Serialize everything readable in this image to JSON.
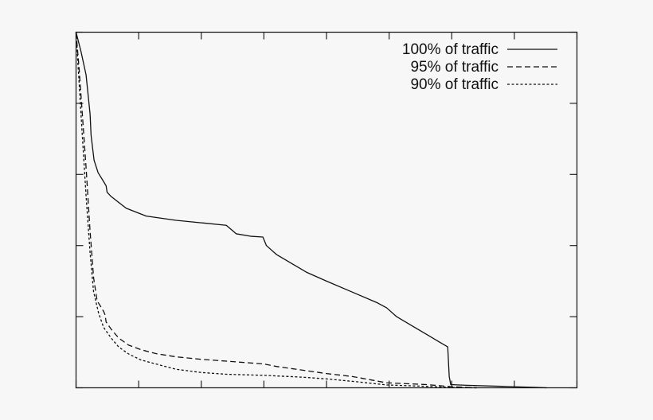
{
  "chart_data": {
    "type": "line",
    "title": "",
    "xlabel": "",
    "ylabel": "",
    "xlim": [
      0,
      100
    ],
    "ylim": [
      0,
      100
    ],
    "x_ticks": [
      0,
      12.5,
      25,
      37.5,
      50,
      62.5,
      75,
      87.5,
      100
    ],
    "y_ticks": [
      0,
      20,
      40,
      60,
      80,
      100
    ],
    "tick_labels_shown": false,
    "grid": false,
    "legend_position": "top-right",
    "series": [
      {
        "name": "100% of traffic",
        "line_style": "solid",
        "color": "#111111",
        "points": [
          [
            0,
            100
          ],
          [
            1,
            94.5
          ],
          [
            2,
            88
          ],
          [
            2.8,
            77
          ],
          [
            3,
            71
          ],
          [
            3.6,
            64
          ],
          [
            4.4,
            60.5
          ],
          [
            5.5,
            58
          ],
          [
            6,
            56.8
          ],
          [
            6.2,
            55
          ],
          [
            7,
            53.8
          ],
          [
            10,
            50.5
          ],
          [
            14,
            48.3
          ],
          [
            20,
            47.1
          ],
          [
            25,
            46.4
          ],
          [
            30,
            45.7
          ],
          [
            31,
            44.5
          ],
          [
            32,
            43.3
          ],
          [
            35,
            42.6
          ],
          [
            37.3,
            42.4
          ],
          [
            38,
            40
          ],
          [
            40,
            37.5
          ],
          [
            43,
            35
          ],
          [
            46,
            32.5
          ],
          [
            50,
            30
          ],
          [
            55,
            27
          ],
          [
            60,
            24
          ],
          [
            62,
            22.5
          ],
          [
            64,
            20
          ],
          [
            67,
            17.5
          ],
          [
            70,
            15
          ],
          [
            73,
            12.5
          ],
          [
            74.2,
            11.5
          ],
          [
            74.5,
            3.2
          ],
          [
            74.8,
            0.9
          ],
          [
            78,
            0.7
          ],
          [
            85,
            0.4
          ],
          [
            92,
            0.1
          ],
          [
            94,
            0
          ]
        ]
      },
      {
        "name": "95% of traffic",
        "line_style": "dashed",
        "color": "#111111",
        "points": [
          [
            0,
            100
          ],
          [
            0.6,
            90
          ],
          [
            1.2,
            78
          ],
          [
            2,
            62
          ],
          [
            2.8,
            44
          ],
          [
            3.5,
            31
          ],
          [
            4.2,
            24.5
          ],
          [
            5.5,
            21.5
          ],
          [
            5.8,
            20.5
          ],
          [
            6,
            18.5
          ],
          [
            7,
            16.5
          ],
          [
            8.5,
            14
          ],
          [
            10.5,
            12
          ],
          [
            13,
            10.7
          ],
          [
            16,
            9.6
          ],
          [
            20,
            8.7
          ],
          [
            25,
            8
          ],
          [
            30,
            7.5
          ],
          [
            37.5,
            6.7
          ],
          [
            40,
            6
          ],
          [
            45,
            5
          ],
          [
            50,
            4
          ],
          [
            55,
            3.2
          ],
          [
            57,
            2.7
          ],
          [
            62,
            1.4
          ],
          [
            70,
            0.9
          ],
          [
            75,
            0.3
          ],
          [
            80,
            0
          ]
        ]
      },
      {
        "name": "90% of traffic",
        "line_style": "dotted",
        "color": "#111111",
        "points": [
          [
            0,
            100
          ],
          [
            0.6,
            86
          ],
          [
            1.2,
            72
          ],
          [
            2,
            54
          ],
          [
            2.8,
            38
          ],
          [
            3.5,
            27
          ],
          [
            4.5,
            21
          ],
          [
            5.5,
            17
          ],
          [
            7,
            14
          ],
          [
            8.5,
            11.5
          ],
          [
            10.5,
            9.5
          ],
          [
            13,
            7.8
          ],
          [
            17,
            6.3
          ],
          [
            20,
            5.2
          ],
          [
            25,
            4.3
          ],
          [
            30,
            3.8
          ],
          [
            37.5,
            3.5
          ],
          [
            45,
            3
          ],
          [
            50,
            2.5
          ],
          [
            56,
            1.7
          ],
          [
            62,
            0.8
          ],
          [
            70,
            0.4
          ],
          [
            75,
            0.1
          ],
          [
            80,
            0
          ]
        ]
      }
    ]
  }
}
